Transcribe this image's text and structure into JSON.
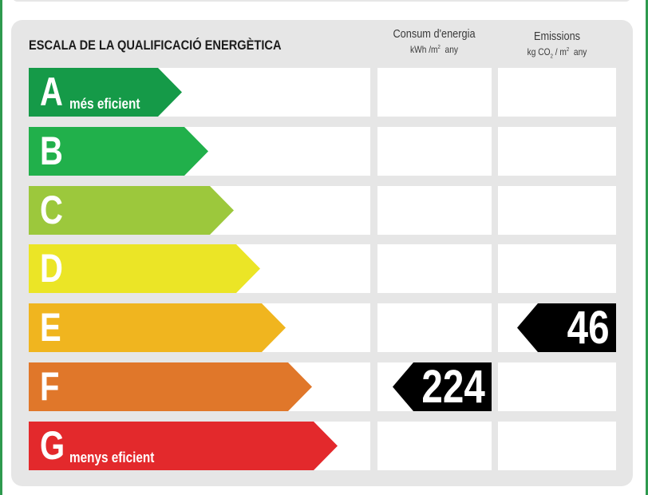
{
  "title": "ESCALA DE LA QUALIFICACIÓ ENERGÈTICA",
  "columns": {
    "consum": {
      "label": "Consum d'energia",
      "unit_pre": "kWh /m",
      "unit_sup": "2",
      "unit_post": "any"
    },
    "emissions": {
      "label": "Emissions",
      "unit_pre": "kg CO",
      "unit_sub": "2",
      "unit_mid": "/ m",
      "unit_sup": "2",
      "unit_post": "any"
    }
  },
  "classes": [
    {
      "letter": "A",
      "sublabel": "més eficient",
      "color": "#159a48"
    },
    {
      "letter": "B",
      "sublabel": "",
      "color": "#21b04b"
    },
    {
      "letter": "C",
      "sublabel": "",
      "color": "#9cc83c"
    },
    {
      "letter": "D",
      "sublabel": "",
      "color": "#ebe526"
    },
    {
      "letter": "E",
      "sublabel": "",
      "color": "#f0b51f"
    },
    {
      "letter": "F",
      "sublabel": "",
      "color": "#e0772a"
    },
    {
      "letter": "G",
      "sublabel": "menys eficient",
      "color": "#e3292c"
    }
  ],
  "ratings": {
    "consum": {
      "value": "224",
      "class": "F"
    },
    "emissions": {
      "value": "46",
      "class": "E"
    }
  }
}
